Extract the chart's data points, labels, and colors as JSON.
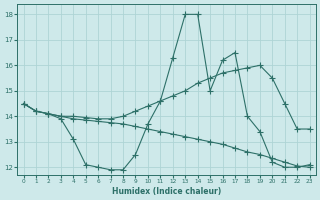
{
  "xlabel": "Humidex (Indice chaleur)",
  "bg_color": "#cee9ea",
  "grid_color": "#aed4d5",
  "line_color": "#2d7068",
  "xlim": [
    -0.5,
    23.5
  ],
  "ylim": [
    11.7,
    18.4
  ],
  "xticks": [
    0,
    1,
    2,
    3,
    4,
    5,
    6,
    7,
    8,
    9,
    10,
    11,
    12,
    13,
    14,
    15,
    16,
    17,
    18,
    19,
    20,
    21,
    22,
    23
  ],
  "yticks": [
    12,
    13,
    14,
    15,
    16,
    17,
    18
  ],
  "line1_x": [
    0,
    1,
    2,
    3,
    4,
    5,
    6,
    7,
    8,
    9,
    10,
    11,
    12,
    13,
    14,
    15,
    16,
    17,
    18,
    19,
    20,
    21,
    22,
    23
  ],
  "line1_y": [
    14.5,
    14.2,
    14.1,
    13.9,
    13.1,
    12.1,
    12.0,
    11.9,
    11.9,
    12.5,
    13.7,
    14.6,
    16.3,
    18.0,
    18.0,
    15.0,
    16.2,
    16.5,
    14.0,
    13.4,
    12.2,
    12.0,
    12.0,
    12.1
  ],
  "line2_x": [
    0,
    1,
    2,
    3,
    4,
    5,
    6,
    7,
    8,
    9,
    10,
    11,
    12,
    13,
    14,
    15,
    16,
    17,
    18,
    19,
    20,
    21,
    22,
    23
  ],
  "line2_y": [
    14.5,
    14.2,
    14.1,
    14.0,
    14.0,
    13.95,
    13.9,
    13.9,
    14.0,
    14.2,
    14.4,
    14.6,
    14.8,
    15.0,
    15.3,
    15.5,
    15.7,
    15.8,
    15.9,
    16.0,
    15.5,
    14.5,
    13.5,
    13.5
  ],
  "line3_x": [
    0,
    1,
    2,
    3,
    4,
    5,
    6,
    7,
    8,
    9,
    10,
    11,
    12,
    13,
    14,
    15,
    16,
    17,
    18,
    19,
    20,
    21,
    22,
    23
  ],
  "line3_y": [
    14.5,
    14.2,
    14.1,
    14.0,
    13.9,
    13.85,
    13.8,
    13.75,
    13.7,
    13.6,
    13.5,
    13.4,
    13.3,
    13.2,
    13.1,
    13.0,
    12.9,
    12.75,
    12.6,
    12.5,
    12.35,
    12.2,
    12.05,
    12.0
  ]
}
